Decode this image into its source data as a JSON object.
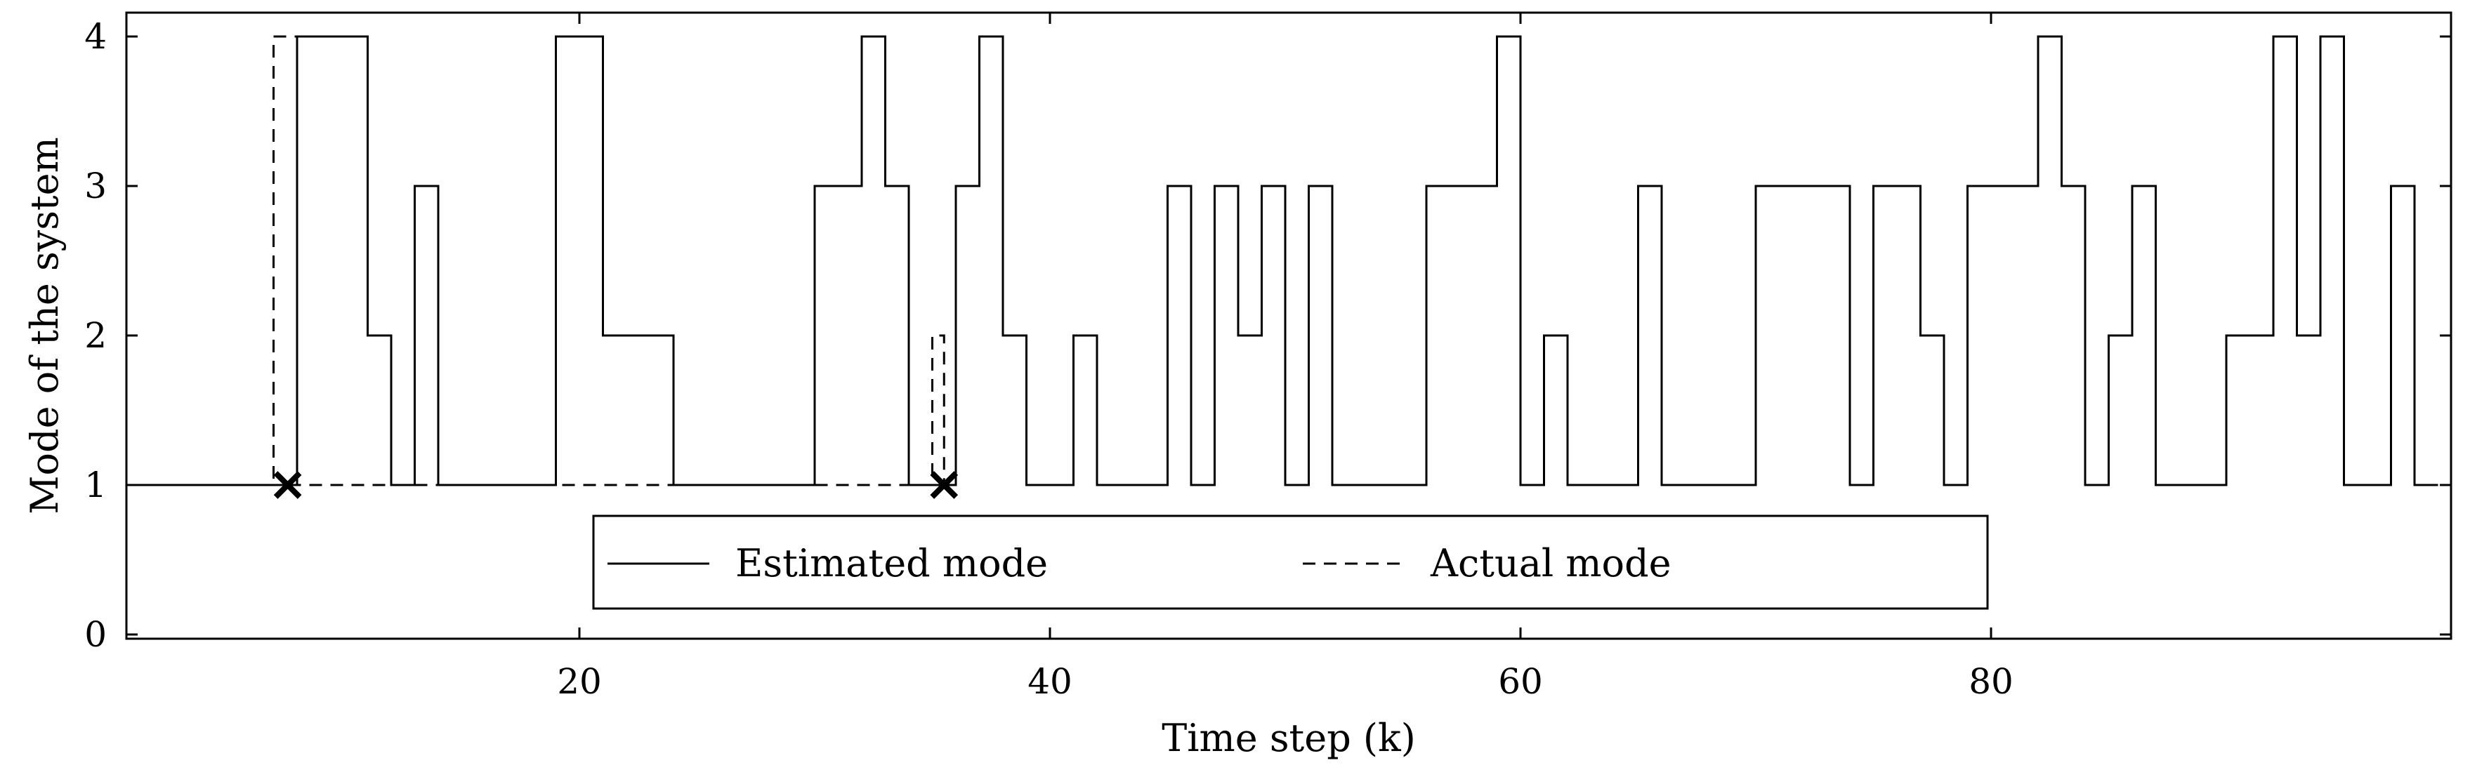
{
  "chart_data": {
    "type": "line",
    "step": true,
    "xlabel": "Time step (k)",
    "ylabel": "Mode of the system",
    "xlim": [
      1,
      99
    ],
    "ylim": [
      0,
      4
    ],
    "xticks": [
      20,
      40,
      60,
      80
    ],
    "yticks": [
      0,
      1,
      2,
      3,
      4
    ],
    "grid": false,
    "legend": {
      "placement": "bottom-center",
      "entries": [
        "Estimated mode",
        "Actual mode"
      ]
    },
    "series": [
      {
        "name": "Estimated mode",
        "style": "solid",
        "color": "#000000",
        "x": [
          1,
          8,
          9,
          11,
          12,
          13,
          14,
          19,
          21,
          24,
          30,
          32,
          33,
          34,
          36,
          37,
          38,
          39,
          41,
          42,
          45,
          46,
          47,
          48,
          49,
          50,
          51,
          52,
          53,
          56,
          59,
          60,
          61,
          62,
          65,
          66,
          67,
          70,
          74,
          75,
          77,
          78,
          79,
          82,
          83,
          84,
          85,
          86,
          87,
          90,
          92,
          93,
          94,
          95,
          97,
          98,
          99
        ],
        "y": [
          1,
          4,
          4,
          2,
          1,
          3,
          1,
          4,
          2,
          1,
          3,
          4,
          3,
          1,
          3,
          4,
          2,
          1,
          2,
          1,
          3,
          1,
          3,
          2,
          3,
          1,
          3,
          1,
          1,
          3,
          4,
          1,
          2,
          1,
          3,
          1,
          1,
          3,
          1,
          3,
          2,
          1,
          3,
          4,
          3,
          1,
          2,
          3,
          1,
          2,
          4,
          2,
          4,
          1,
          3,
          1,
          1
        ]
      },
      {
        "name": "Actual mode",
        "style": "dashed",
        "color": "#000000",
        "x": [
          1,
          7,
          8,
          35,
          35.5,
          36
        ],
        "y": [
          1,
          4,
          1,
          2,
          1,
          1
        ]
      }
    ],
    "markers": [
      {
        "x": 7.6,
        "y": 1,
        "symbol": "x"
      },
      {
        "x": 35.5,
        "y": 1,
        "symbol": "x"
      }
    ]
  }
}
